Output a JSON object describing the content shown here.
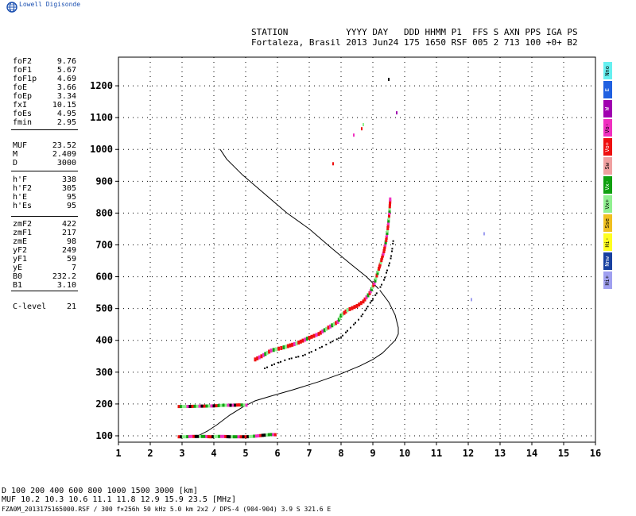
{
  "brand": {
    "name": "Lowell Digisonde",
    "logo_icon": "globe-icon"
  },
  "header": {
    "line1": "STATION           YYYY DAY   DDD HHMM P1  FFS S AXN PPS IGA PS",
    "line2": "Fortaleza, Brasil 2013 Jun24 175 1650 RSF 005 2 713 100 +0+ B2"
  },
  "params": {
    "group1": [
      {
        "k": "foF2",
        "v": "9.76"
      },
      {
        "k": "foF1",
        "v": "5.67"
      },
      {
        "k": "foF1p",
        "v": "4.69"
      },
      {
        "k": "foE",
        "v": "3.66"
      },
      {
        "k": "foEp",
        "v": "3.34"
      },
      {
        "k": "fxI",
        "v": "10.15"
      },
      {
        "k": "foEs",
        "v": "4.95"
      },
      {
        "k": "fmin",
        "v": "2.95"
      }
    ],
    "group2": [
      {
        "k": "MUF",
        "v": "23.52"
      },
      {
        "k": "M",
        "v": "2.409"
      },
      {
        "k": "D",
        "v": "3000"
      }
    ],
    "group3": [
      {
        "k": "h'F",
        "v": "338"
      },
      {
        "k": "h'F2",
        "v": "305"
      },
      {
        "k": "h'E",
        "v": "95"
      },
      {
        "k": "h'Es",
        "v": "95"
      }
    ],
    "group4": [
      {
        "k": "zmF2",
        "v": "422"
      },
      {
        "k": "zmF1",
        "v": "217"
      },
      {
        "k": "zmE",
        "v": "98"
      },
      {
        "k": "yF2",
        "v": "249"
      },
      {
        "k": "yF1",
        "v": "59"
      },
      {
        "k": "yE",
        "v": "7"
      },
      {
        "k": "B0",
        "v": "232.2"
      },
      {
        "k": "B1",
        "v": "3.10"
      }
    ],
    "group5": [
      {
        "k": "C-level",
        "v": "21"
      }
    ]
  },
  "legend": [
    {
      "label": "Nno",
      "color": "#66f0f0"
    },
    {
      "label": "E",
      "color": "#2060e0"
    },
    {
      "label": "W",
      "color": "#a000b0"
    },
    {
      "label": "Vo-",
      "color": "#f030c0"
    },
    {
      "label": "Vo+",
      "color": "#ee1010"
    },
    {
      "label": "Sw",
      "color": "#f0a0a0"
    },
    {
      "label": "Vx-",
      "color": "#10a010"
    },
    {
      "label": "Vx+",
      "color": "#90f090"
    },
    {
      "label": "Sse",
      "color": "#f0c020"
    },
    {
      "label": "Hi-",
      "color": "#ffff20"
    },
    {
      "label": "Nnw",
      "color": "#1840a0"
    },
    {
      "label": "Hi+",
      "color": "#a0a0f0"
    }
  ],
  "footer": {
    "d_row": "D     100   200   400   600   800  1000  1500  3000   [km]",
    "muf_row": "MUF  10.2  10.3  10.6  11.1  11.8  12.9  15.9  23.5   [MHz]",
    "file_row": "FZA0M_2013175165000.RSF / 300 f×256h 50 kHz 5.0 km 2x2 / DPS-4 (904-904)  3.9 S 321.6 E"
  },
  "chart_data": {
    "type": "scatter",
    "xlim": [
      1,
      16
    ],
    "ylim": [
      80,
      1290
    ],
    "x_ticks": [
      1,
      2,
      3,
      4,
      5,
      6,
      7,
      8,
      9,
      10,
      11,
      12,
      13,
      14,
      15,
      16
    ],
    "y_ticks": [
      100,
      200,
      300,
      400,
      500,
      600,
      700,
      800,
      900,
      1000,
      1100,
      1200
    ],
    "grid": true,
    "profile_curve": [
      [
        4.2,
        1000
      ],
      [
        4.4,
        970
      ],
      [
        4.9,
        920
      ],
      [
        5.6,
        860
      ],
      [
        6.3,
        800
      ],
      [
        7.0,
        750
      ],
      [
        7.7,
        690
      ],
      [
        8.3,
        640
      ],
      [
        8.8,
        600
      ],
      [
        9.2,
        560
      ],
      [
        9.5,
        520
      ],
      [
        9.7,
        480
      ],
      [
        9.8,
        440
      ],
      [
        9.8,
        420
      ],
      [
        9.7,
        400
      ],
      [
        9.5,
        380
      ],
      [
        9.3,
        360
      ],
      [
        9.0,
        340
      ],
      [
        8.6,
        320
      ],
      [
        8.0,
        295
      ],
      [
        7.3,
        270
      ],
      [
        6.5,
        245
      ],
      [
        5.8,
        225
      ],
      [
        5.3,
        210
      ],
      [
        4.9,
        190
      ],
      [
        4.5,
        165
      ],
      [
        4.1,
        135
      ],
      [
        3.8,
        115
      ],
      [
        3.5,
        100
      ]
    ],
    "o_trace": [
      [
        5.3,
        340
      ],
      [
        5.5,
        350
      ],
      [
        5.8,
        368
      ],
      [
        6.2,
        378
      ],
      [
        6.6,
        390
      ],
      [
        7.0,
        408
      ],
      [
        7.3,
        420
      ],
      [
        7.6,
        440
      ],
      [
        7.9,
        458
      ],
      [
        8.0,
        478
      ],
      [
        8.2,
        495
      ],
      [
        8.5,
        508
      ],
      [
        8.7,
        522
      ],
      [
        8.9,
        548
      ],
      [
        9.05,
        580
      ],
      [
        9.15,
        612
      ],
      [
        9.25,
        645
      ],
      [
        9.35,
        680
      ],
      [
        9.42,
        715
      ],
      [
        9.48,
        760
      ],
      [
        9.52,
        800
      ],
      [
        9.55,
        850
      ]
    ],
    "x_trace": [
      [
        5.6,
        312
      ],
      [
        5.9,
        325
      ],
      [
        6.3,
        340
      ],
      [
        6.8,
        352
      ],
      [
        7.2,
        370
      ],
      [
        7.6,
        390
      ],
      [
        8.0,
        410
      ],
      [
        8.3,
        440
      ],
      [
        8.6,
        470
      ],
      [
        8.8,
        500
      ],
      [
        9.0,
        530
      ],
      [
        9.2,
        560
      ],
      [
        9.35,
        590
      ],
      [
        9.45,
        620
      ],
      [
        9.55,
        650
      ],
      [
        9.6,
        680
      ],
      [
        9.65,
        720
      ]
    ],
    "es_trace_200": [
      [
        2.9,
        192
      ],
      [
        3.1,
        192
      ],
      [
        4.0,
        194
      ],
      [
        4.3,
        196
      ],
      [
        4.6,
        196
      ],
      [
        4.8,
        197
      ],
      [
        5.1,
        196
      ]
    ],
    "e_trace_100": [
      [
        2.9,
        97
      ],
      [
        3.1,
        97
      ],
      [
        3.3,
        98
      ],
      [
        3.5,
        98
      ],
      [
        3.7,
        98
      ],
      [
        3.9,
        97
      ],
      [
        4.1,
        98
      ],
      [
        4.3,
        98
      ],
      [
        4.5,
        97
      ],
      [
        4.7,
        97
      ],
      [
        5.0,
        97
      ],
      [
        5.2,
        98
      ],
      [
        5.4,
        100
      ],
      [
        5.6,
        102
      ],
      [
        5.8,
        104
      ],
      [
        6.0,
        103
      ]
    ],
    "scatter_points": [
      [
        7.75,
        955
      ],
      [
        8.4,
        1045
      ],
      [
        8.65,
        1065
      ],
      [
        8.7,
        1078
      ],
      [
        9.5,
        1220
      ],
      [
        9.75,
        1115
      ],
      [
        12.5,
        735
      ],
      [
        12.1,
        528
      ]
    ]
  }
}
